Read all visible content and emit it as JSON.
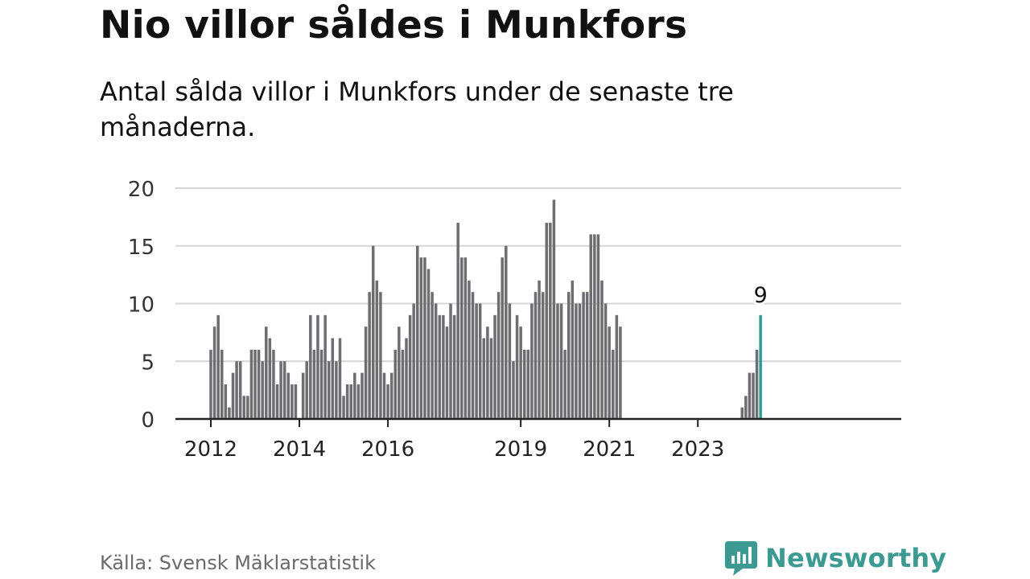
{
  "header": {
    "title": "Nio villor såldes i Munkfors",
    "subtitle": "Antal sålda villor i Munkfors under de senaste tre månaderna."
  },
  "footer": {
    "source": "Källa: Svensk Mäklarstatistik",
    "brand": "Newsworthy"
  },
  "colors": {
    "bar": "#6e6d72",
    "highlight": "#2a9d94",
    "grid": "#d6d6d6",
    "axis": "#222222",
    "brand": "#3d9a92"
  },
  "chart_data": {
    "type": "bar",
    "title": "Nio villor såldes i Munkfors",
    "subtitle": "Antal sålda villor i Munkfors under de senaste tre månaderna.",
    "xlabel": "",
    "ylabel": "",
    "ylim": [
      0,
      20
    ],
    "yticks": [
      0,
      5,
      10,
      15,
      20
    ],
    "grid": true,
    "x_unit": "month",
    "x_start": "2012-01",
    "x_ticks": [
      "2012",
      "2014",
      "2016",
      "2019",
      "2021",
      "2023"
    ],
    "highlight_index": -1,
    "highlight_label": "9",
    "values": [
      6,
      8,
      9,
      6,
      3,
      1,
      4,
      5,
      5,
      2,
      2,
      6,
      6,
      6,
      5,
      8,
      7,
      6,
      3,
      5,
      5,
      4,
      3,
      3,
      0,
      4,
      5,
      9,
      6,
      9,
      6,
      9,
      5,
      7,
      5,
      7,
      2,
      3,
      3,
      4,
      3,
      4,
      8,
      11,
      15,
      12,
      11,
      4,
      3,
      4,
      6,
      8,
      6,
      7,
      9,
      10,
      15,
      14,
      14,
      13,
      11,
      10,
      9,
      9,
      8,
      10,
      9,
      17,
      14,
      14,
      12,
      11,
      10,
      10,
      7,
      8,
      7,
      9,
      11,
      14,
      15,
      10,
      5,
      9,
      8,
      6,
      6,
      10,
      11,
      12,
      11,
      17,
      17,
      19,
      10,
      10,
      6,
      11,
      12,
      10,
      10,
      11,
      11,
      16,
      16,
      16,
      12,
      10,
      8,
      6,
      9,
      8,
      null,
      null,
      null,
      null,
      null,
      null,
      null,
      null,
      null,
      null,
      null,
      null,
      null,
      null,
      null,
      null,
      null,
      null,
      null,
      null,
      null,
      null,
      null,
      null,
      null,
      null,
      null,
      null,
      null,
      null,
      null,
      null,
      1,
      2,
      4,
      4,
      6,
      9
    ]
  }
}
